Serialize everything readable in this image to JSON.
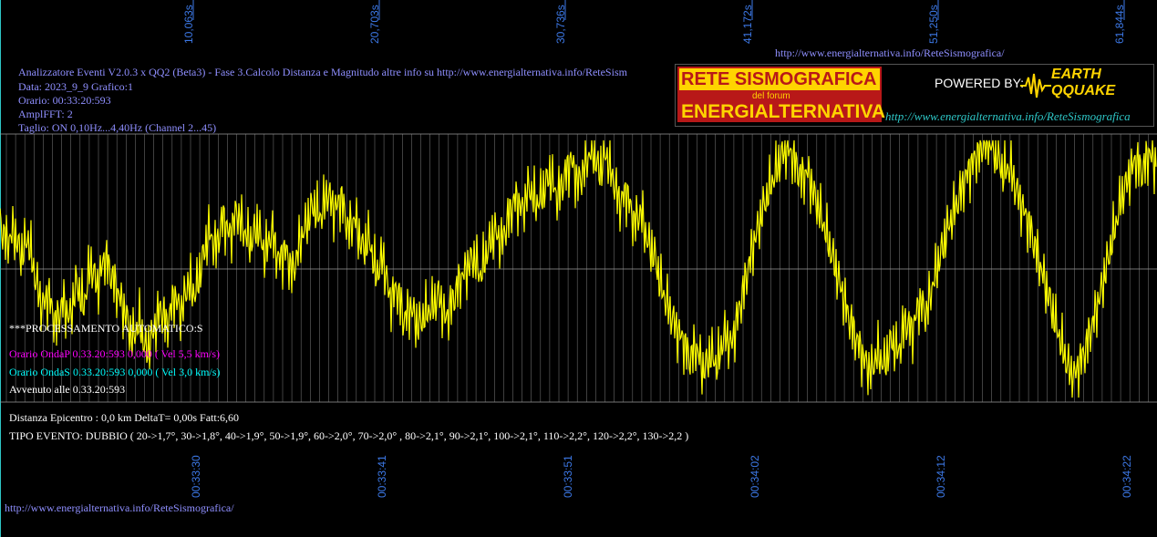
{
  "header": {
    "line1": "Analizzatore Eventi V2.0.3 x QQ2 (Beta3) - Fase 3.Calcolo Distanza e Magnitudo altre info su http://www.energialternativa.info/ReteSism",
    "line2": "Data: 2023_9_9 Grafico:1",
    "line3": "Orario: 00:33:20:593",
    "line4": "AmplFFT: 2",
    "line5": "Taglio: ON 0,10Hz...4,40Hz       (Channel 2...45)"
  },
  "top_url": "http://www.energialternativa.info/ReteSismografica/",
  "bottom_url": "http://www.energialternativa.info/ReteSismografica/",
  "logo": {
    "title": "RETE SISMOGRAFICA",
    "subtitle": "del forum",
    "name": "ENERGIALTERNATIVA",
    "powered": "POWERED BY:",
    "brand_top": "EARTH",
    "brand_bottom": "QQUAKE",
    "url": "http://www.energialternativa.info/ReteSismografica"
  },
  "processing": {
    "title": "***PROCESSAMENTO AUTOMATICO:S",
    "onda_p": "Orario OndaP 0.33.20:593  0,000 ( Vel 5,5 km/s)",
    "onda_s": "Orario OndaS 0.33.20:593  0,000 ( Vel 3,0 km/s)",
    "avvenuto": "Avvenuto alle 0.33.20:593"
  },
  "result": {
    "distance": "Distanza Epicentro : 0,0 km DeltaT= 0,00s  Fatt:6,60",
    "event_type": "TIPO EVENTO: DUBBIO ( 20->1,7°, 30->1,8°, 40->1,9°, 50->1,9°, 60->2,0°, 70->2,0° , 80->2,1°, 90->2,1°, 100->2,1°, 110->2,2°, 120->2,2°, 130->2,2 )"
  },
  "colors": {
    "signal": "#ffff00",
    "grid": "#6a6a6a",
    "ticks": "#3c78e6",
    "onda_p": "#ff00ff",
    "onda_s": "#00ffff"
  },
  "chart_data": {
    "type": "line",
    "top_tick_labels": [
      "10,063s",
      "20,703s",
      "30,736s",
      "41,172s",
      "51,250s",
      "61,844s"
    ],
    "bottom_tick_labels": [
      "00:33:30",
      "00:33:41",
      "00:33:51",
      "00:34:02",
      "00:34:12",
      "00:34:22"
    ],
    "x_range_seconds": [
      0,
      62
    ],
    "y_range": [
      -1,
      1
    ],
    "grid": true,
    "series": [
      {
        "values": [
          0.35,
          0.2,
          0.3,
          0.1,
          0.25,
          -0.05,
          -0.3,
          -0.2,
          -0.45,
          -0.25,
          -0.4,
          -0.1,
          -0.3,
          0.05,
          -0.15,
          0.1,
          -0.05,
          -0.2,
          -0.35,
          -0.55,
          -0.4,
          -0.65,
          -0.5,
          -0.3,
          -0.45,
          -0.2,
          -0.35,
          -0.1,
          -0.2,
          0.05,
          0.3,
          0.15,
          0.4,
          0.25,
          0.45,
          0.3,
          0.2,
          0.35,
          0.1,
          0.3,
          0.05,
          0.15,
          -0.05,
          0.2,
          0.35,
          0.5,
          0.4,
          0.6,
          0.45,
          0.55,
          0.3,
          0.4,
          0.15,
          0.25,
          -0.05,
          0.1,
          -0.25,
          -0.15,
          -0.4,
          -0.3,
          -0.45,
          -0.35,
          -0.3,
          -0.2,
          -0.4,
          -0.25,
          -0.1,
          0.0,
          0.1,
          -0.05,
          0.15,
          0.3,
          0.2,
          0.4,
          0.55,
          0.45,
          0.65,
          0.5,
          0.6,
          0.75,
          0.55,
          0.7,
          0.85,
          0.65,
          0.8,
          0.95,
          0.75,
          0.9,
          0.7,
          0.5,
          0.6,
          0.35,
          0.45,
          0.2,
          0.1,
          -0.15,
          -0.3,
          -0.45,
          -0.55,
          -0.7,
          -0.6,
          -0.8,
          -0.65,
          -0.75,
          -0.5,
          -0.6,
          -0.35,
          -0.1,
          0.15,
          0.35,
          0.55,
          0.7,
          0.85,
          0.95,
          0.85,
          0.7,
          0.75,
          0.55,
          0.4,
          0.2,
          0.0,
          -0.2,
          -0.4,
          -0.55,
          -0.7,
          -0.8,
          -0.65,
          -0.75,
          -0.55,
          -0.65,
          -0.4,
          -0.5,
          -0.25,
          -0.35,
          -0.1,
          0.1,
          0.3,
          0.45,
          0.6,
          0.75,
          0.85,
          0.95,
          1.0,
          0.9,
          0.75,
          0.8,
          0.6,
          0.45,
          0.3,
          0.1,
          -0.1,
          -0.3,
          -0.5,
          -0.7,
          -0.85,
          -0.75,
          -0.6,
          -0.4,
          -0.2,
          0.05,
          0.3,
          0.55,
          0.7,
          0.85,
          0.75,
          0.9,
          0.8
        ]
      }
    ]
  }
}
